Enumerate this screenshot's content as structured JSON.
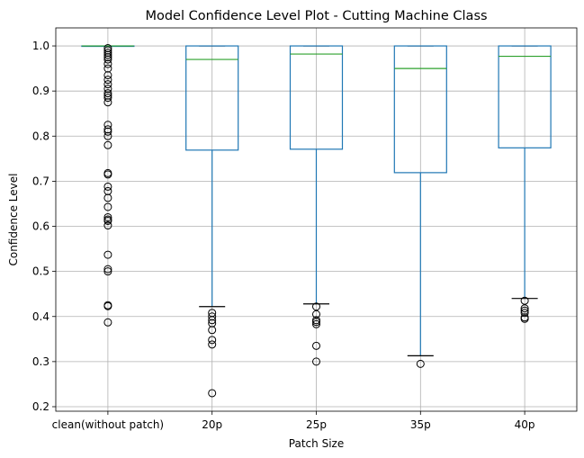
{
  "chart_data": {
    "type": "box",
    "title": "Model Confidence Level Plot - Cutting Machine Class",
    "xlabel": "Patch Size",
    "ylabel": "Confidence Level",
    "ylim": [
      0.19,
      1.04
    ],
    "yticks": [
      0.2,
      0.3,
      0.4,
      0.5,
      0.6,
      0.7,
      0.8,
      0.9,
      1.0
    ],
    "ytick_labels": [
      "0.2",
      "0.3",
      "0.4",
      "0.5",
      "0.6",
      "0.7",
      "0.8",
      "0.9",
      "1.0"
    ],
    "grid": true,
    "categories": [
      "clean(without patch)",
      "20p",
      "25p",
      "35p",
      "40p"
    ],
    "boxes": [
      {
        "q1": 1.0,
        "median": 1.0,
        "q3": 1.0,
        "whisker_low": 1.0,
        "whisker_high": 1.0,
        "outliers": [
          0.387,
          0.423,
          0.425,
          0.5,
          0.505,
          0.537,
          0.602,
          0.612,
          0.615,
          0.62,
          0.643,
          0.663,
          0.678,
          0.688,
          0.715,
          0.718,
          0.78,
          0.8,
          0.81,
          0.815,
          0.825,
          0.875,
          0.885,
          0.89,
          0.895,
          0.905,
          0.915,
          0.925,
          0.935,
          0.95,
          0.96,
          0.97,
          0.975,
          0.98,
          0.985,
          0.99,
          0.995
        ]
      },
      {
        "q1": 0.769,
        "median": 0.97,
        "q3": 1.0,
        "whisker_low": 0.422,
        "whisker_high": 1.0,
        "outliers": [
          0.23,
          0.338,
          0.348,
          0.37,
          0.385,
          0.392,
          0.4,
          0.408
        ]
      },
      {
        "q1": 0.771,
        "median": 0.982,
        "q3": 1.0,
        "whisker_low": 0.428,
        "whisker_high": 1.0,
        "outliers": [
          0.3,
          0.335,
          0.383,
          0.388,
          0.392,
          0.405,
          0.422
        ]
      },
      {
        "q1": 0.719,
        "median": 0.95,
        "q3": 1.0,
        "whisker_low": 0.313,
        "whisker_high": 1.0,
        "outliers": [
          0.295
        ]
      },
      {
        "q1": 0.774,
        "median": 0.977,
        "q3": 1.0,
        "whisker_low": 0.44,
        "whisker_high": 1.0,
        "outliers": [
          0.395,
          0.398,
          0.408,
          0.413,
          0.418,
          0.435
        ]
      }
    ],
    "colors": {
      "box": "#1f77b4",
      "median": "#2ca02c",
      "whisker": "#1f77b4",
      "cap": "#000000",
      "outlier": "#000000",
      "grid": "#b0b0b0"
    }
  }
}
